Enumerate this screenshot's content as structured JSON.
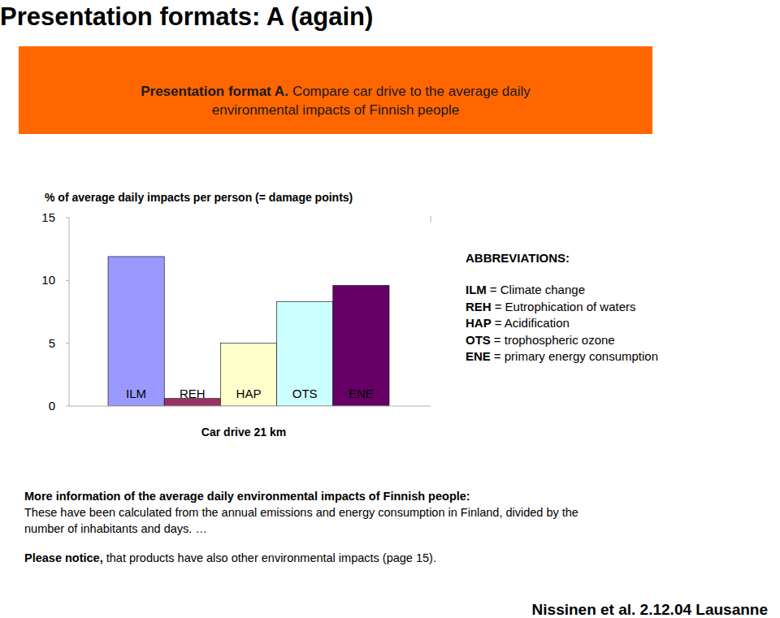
{
  "slide": {
    "title": "Presentation formats: A (again)",
    "banner": {
      "bold": "Presentation format A.",
      "lines": [
        "Compare car drive to the average daily",
        "environmental impacts of Finnish people"
      ]
    },
    "abbreviations": {
      "heading": "ABBREVIATIONS:",
      "items": [
        {
          "code": "ILM",
          "text": "= Climate change"
        },
        {
          "code": "REH",
          "text": "=  Eutrophication of waters"
        },
        {
          "code": "HAP",
          "text": "= Acidification"
        },
        {
          "code": "OTS",
          "text": "= trophospheric ozone"
        },
        {
          "code": "ENE",
          "text": "= primary energy consumption"
        }
      ]
    },
    "more_info": {
      "heading": "More information of the average daily environmental impacts of Finnish people:",
      "lines": [
        "These have been calculated from the annual emissions and energy consumption in Finland, divided by the",
        "number of inhabitants and days. …"
      ]
    },
    "notice": {
      "bold": "Please notice,",
      "text": "that products have also other environmental impacts (page 15)."
    },
    "credit": "Nissinen et al. 2.12.04 Lausanne"
  },
  "chart_data": {
    "type": "bar",
    "y_label": "% of  average daily impacts per person (= damage points)",
    "x_label": "Car drive 21 km",
    "categories": [
      "ILM",
      "REH",
      "HAP",
      "OTS",
      "ENE"
    ],
    "values": [
      11.9,
      0.6,
      5.0,
      8.3,
      9.6
    ],
    "colors": [
      "#9999ff",
      "#993366",
      "#ffffcc",
      "#ccffff",
      "#660066"
    ],
    "ylim": [
      0,
      15
    ],
    "yticks": [
      0,
      5,
      10,
      15
    ],
    "grid": false
  }
}
